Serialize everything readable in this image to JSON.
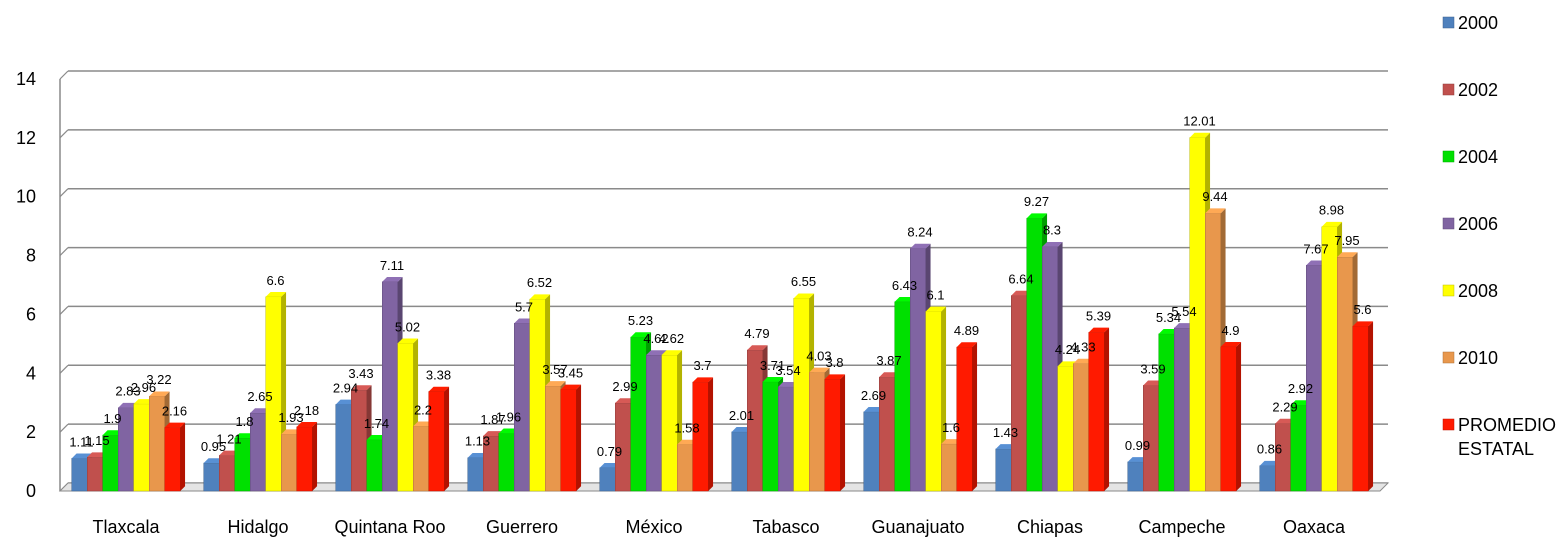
{
  "chart_data": {
    "type": "bar",
    "categories": [
      "Tlaxcala",
      "Hidalgo",
      "Quintana Roo",
      "Guerrero",
      "México",
      "Tabasco",
      "Guanajuato",
      "Chiapas",
      "Campeche",
      "Oaxaca"
    ],
    "series": [
      {
        "name": "2000",
        "color": "#4F81BD",
        "values": [
          1.11,
          0.95,
          2.94,
          1.13,
          0.79,
          2.01,
          2.69,
          1.43,
          0.99,
          0.86
        ]
      },
      {
        "name": "2002",
        "color": "#C0504D",
        "values": [
          1.15,
          1.21,
          3.43,
          1.87,
          2.99,
          4.79,
          3.87,
          6.64,
          3.59,
          2.29
        ]
      },
      {
        "name": "2004",
        "color": "#00E000",
        "values": [
          1.9,
          1.8,
          1.74,
          1.96,
          5.23,
          3.71,
          6.43,
          9.27,
          5.34,
          2.92
        ]
      },
      {
        "name": "2006",
        "color": "#8064A2",
        "values": [
          2.83,
          2.65,
          7.11,
          5.7,
          4.62,
          3.54,
          8.24,
          8.3,
          5.54,
          7.67
        ]
      },
      {
        "name": "2008",
        "color": "#FFFF00",
        "values": [
          2.96,
          6.6,
          5.02,
          6.52,
          4.62,
          6.55,
          6.1,
          4.24,
          12.01,
          8.98
        ]
      },
      {
        "name": "2010",
        "color": "#E8974C",
        "values": [
          3.22,
          1.93,
          2.2,
          3.57,
          1.58,
          4.03,
          1.6,
          4.33,
          9.44,
          7.95
        ]
      },
      {
        "name": "PROMEDIO ESTATAL",
        "color": "#FF1A00",
        "values": [
          2.16,
          2.18,
          3.38,
          3.45,
          3.7,
          3.8,
          4.89,
          5.39,
          4.9,
          5.6
        ]
      }
    ],
    "ylim": [
      0,
      14
    ],
    "yticks": [
      "0",
      "2",
      "4",
      "6",
      "8",
      "10",
      "12",
      "14"
    ],
    "grid": true,
    "legend": "right"
  }
}
